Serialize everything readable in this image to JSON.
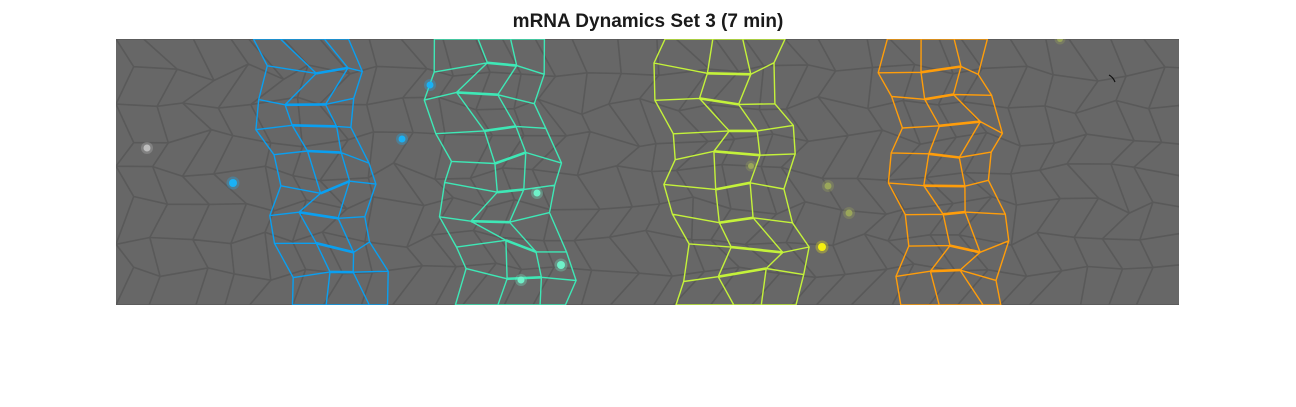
{
  "figure": {
    "title": "mRNA Dynamics Set 3 (7 min)"
  },
  "image": {
    "description_tag": "microscopy-cell-segmentation",
    "background_color": "#676767",
    "cell_edge_color": "#595959",
    "stripes": [
      {
        "name": "stripe-1",
        "color": "#0a9ff0"
      },
      {
        "name": "stripe-2",
        "color": "#3ee8b6"
      },
      {
        "name": "stripe-3",
        "color": "#c4f23a"
      },
      {
        "name": "stripe-4",
        "color": "#ff9d0a"
      }
    ],
    "spot_colors": {
      "blue": "#19b1f5",
      "teal": "#6ff1c9",
      "yellow": "#f5f010",
      "olive": "#9aa65a",
      "gray": "#bdbdbd"
    }
  }
}
